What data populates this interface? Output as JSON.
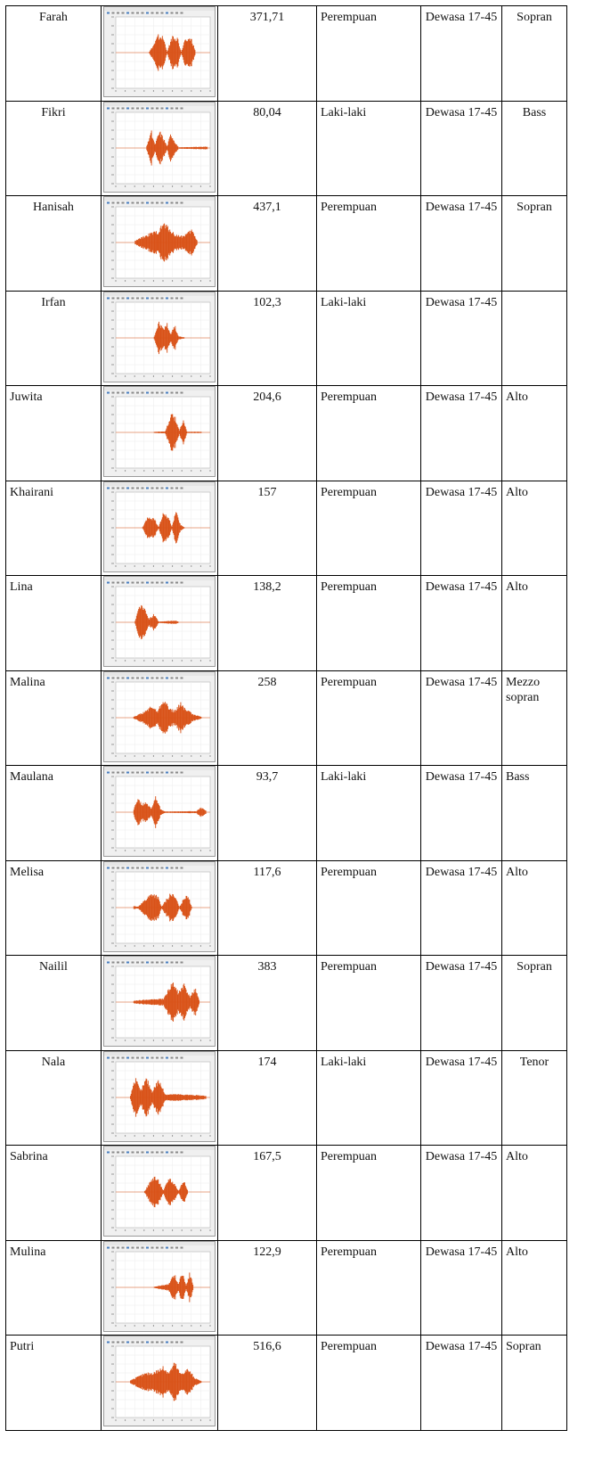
{
  "rows": [
    {
      "name": "Farah",
      "freq": "371,71",
      "gender": "Perempuan",
      "age": "Dewasa 17-45",
      "type": "Sopran",
      "align": "center",
      "wave": [
        [
          0.35,
          0.02
        ],
        [
          0.4,
          0.25
        ],
        [
          0.45,
          0.55
        ],
        [
          0.5,
          0.45
        ],
        [
          0.54,
          0.03
        ],
        [
          0.6,
          0.55
        ],
        [
          0.65,
          0.45
        ],
        [
          0.69,
          0.02
        ],
        [
          0.74,
          0.5
        ],
        [
          0.8,
          0.4
        ],
        [
          0.84,
          0.02
        ]
      ]
    },
    {
      "name": "Fikri",
      "freq": "80,04",
      "gender": "Laki-laki",
      "age": "Dewasa 17-45",
      "type": "Bass",
      "align": "center",
      "wave": [
        [
          0.32,
          0.03
        ],
        [
          0.37,
          0.55
        ],
        [
          0.41,
          0.1
        ],
        [
          0.46,
          0.5
        ],
        [
          0.5,
          0.3
        ],
        [
          0.54,
          0.05
        ],
        [
          0.58,
          0.45
        ],
        [
          0.62,
          0.2
        ],
        [
          0.66,
          0.02
        ],
        [
          0.93,
          0.04
        ],
        [
          0.97,
          0.04
        ]
      ]
    },
    {
      "name": "Hanisah",
      "freq": "437,1",
      "gender": "Perempuan",
      "age": "Dewasa 17-45",
      "type": "Sopran",
      "align": "center",
      "wave": [
        [
          0.2,
          0.05
        ],
        [
          0.3,
          0.2
        ],
        [
          0.38,
          0.3
        ],
        [
          0.45,
          0.35
        ],
        [
          0.5,
          0.6
        ],
        [
          0.56,
          0.45
        ],
        [
          0.62,
          0.25
        ],
        [
          0.7,
          0.2
        ],
        [
          0.76,
          0.3
        ],
        [
          0.8,
          0.4
        ],
        [
          0.86,
          0.05
        ]
      ]
    },
    {
      "name": "Irfan",
      "freq": "102,3",
      "gender": "Laki-laki",
      "age": "Dewasa 17-45",
      "type": "",
      "align": "center",
      "wave": [
        [
          0.4,
          0.02
        ],
        [
          0.45,
          0.5
        ],
        [
          0.5,
          0.3
        ],
        [
          0.54,
          0.45
        ],
        [
          0.58,
          0.1
        ],
        [
          0.62,
          0.4
        ],
        [
          0.66,
          0.05
        ],
        [
          0.72,
          0.02
        ]
      ]
    },
    {
      "name": "Juwita",
      "freq": "204,6",
      "gender": "Perempuan",
      "age": "Dewasa 17-45",
      "type": "Alto",
      "align": "left",
      "wave": [
        [
          0.4,
          0.02
        ],
        [
          0.52,
          0.03
        ],
        [
          0.58,
          0.55
        ],
        [
          0.63,
          0.45
        ],
        [
          0.67,
          0.05
        ],
        [
          0.71,
          0.4
        ],
        [
          0.75,
          0.02
        ],
        [
          0.9,
          0.02
        ]
      ]
    },
    {
      "name": "Khairani",
      "freq": "157",
      "gender": "Perempuan",
      "age": "Dewasa 17-45",
      "type": "Alto",
      "align": "left",
      "wave": [
        [
          0.28,
          0.02
        ],
        [
          0.34,
          0.35
        ],
        [
          0.4,
          0.3
        ],
        [
          0.45,
          0.02
        ],
        [
          0.5,
          0.45
        ],
        [
          0.55,
          0.35
        ],
        [
          0.59,
          0.03
        ],
        [
          0.63,
          0.5
        ],
        [
          0.68,
          0.1
        ],
        [
          0.72,
          0.02
        ]
      ]
    },
    {
      "name": "Lina",
      "freq": "138,2",
      "gender": "Perempuan",
      "age": "Dewasa 17-45",
      "type": "Alto",
      "align": "left",
      "wave": [
        [
          0.2,
          0.03
        ],
        [
          0.25,
          0.55
        ],
        [
          0.3,
          0.4
        ],
        [
          0.35,
          0.1
        ],
        [
          0.4,
          0.25
        ],
        [
          0.45,
          0.02
        ],
        [
          0.63,
          0.05
        ],
        [
          0.66,
          0.02
        ]
      ]
    },
    {
      "name": "Malina",
      "freq": "258",
      "gender": "Perempuan",
      "age": "Dewasa 17-45",
      "type": "Mezzo sopran",
      "align": "left",
      "wave": [
        [
          0.18,
          0.03
        ],
        [
          0.28,
          0.15
        ],
        [
          0.38,
          0.35
        ],
        [
          0.44,
          0.2
        ],
        [
          0.5,
          0.6
        ],
        [
          0.56,
          0.3
        ],
        [
          0.62,
          0.2
        ],
        [
          0.68,
          0.45
        ],
        [
          0.74,
          0.25
        ],
        [
          0.82,
          0.1
        ],
        [
          0.9,
          0.03
        ]
      ]
    },
    {
      "name": "Maulana",
      "freq": "93,7",
      "gender": "Laki-laki",
      "age": "Dewasa 17-45",
      "type": "Bass",
      "align": "left",
      "wave": [
        [
          0.18,
          0.03
        ],
        [
          0.22,
          0.45
        ],
        [
          0.27,
          0.25
        ],
        [
          0.32,
          0.3
        ],
        [
          0.37,
          0.1
        ],
        [
          0.42,
          0.5
        ],
        [
          0.47,
          0.1
        ],
        [
          0.52,
          0.02
        ],
        [
          0.85,
          0.03
        ],
        [
          0.9,
          0.15
        ],
        [
          0.95,
          0.05
        ]
      ]
    },
    {
      "name": "Melisa",
      "freq": "117,6",
      "gender": "Perempuan",
      "age": "Dewasa 17-45",
      "type": "Alto",
      "align": "left",
      "wave": [
        [
          0.18,
          0.05
        ],
        [
          0.23,
          0.03
        ],
        [
          0.38,
          0.45
        ],
        [
          0.44,
          0.35
        ],
        [
          0.48,
          0.02
        ],
        [
          0.58,
          0.45
        ],
        [
          0.63,
          0.3
        ],
        [
          0.67,
          0.02
        ],
        [
          0.75,
          0.45
        ],
        [
          0.8,
          0.03
        ]
      ]
    },
    {
      "name": "Nailil",
      "freq": "383",
      "gender": "Perempuan",
      "age": "Dewasa 17-45",
      "type": "Sopran",
      "align": "center",
      "wave": [
        [
          0.18,
          0.04
        ],
        [
          0.35,
          0.08
        ],
        [
          0.5,
          0.1
        ],
        [
          0.6,
          0.6
        ],
        [
          0.66,
          0.3
        ],
        [
          0.72,
          0.55
        ],
        [
          0.78,
          0.15
        ],
        [
          0.84,
          0.45
        ],
        [
          0.88,
          0.05
        ]
      ]
    },
    {
      "name": "Nala",
      "freq": "174",
      "gender": "Laki-laki",
      "age": "Dewasa 17-45",
      "type": "Tenor",
      "align": "center",
      "wave": [
        [
          0.15,
          0.05
        ],
        [
          0.2,
          0.6
        ],
        [
          0.26,
          0.2
        ],
        [
          0.32,
          0.6
        ],
        [
          0.38,
          0.2
        ],
        [
          0.45,
          0.55
        ],
        [
          0.52,
          0.1
        ],
        [
          0.65,
          0.1
        ],
        [
          0.8,
          0.08
        ],
        [
          0.95,
          0.05
        ]
      ]
    },
    {
      "name": "Sabrina",
      "freq": "167,5",
      "gender": "Perempuan",
      "age": "Dewasa 17-45",
      "type": "Alto",
      "align": "left",
      "wave": [
        [
          0.3,
          0.02
        ],
        [
          0.4,
          0.5
        ],
        [
          0.46,
          0.3
        ],
        [
          0.5,
          0.03
        ],
        [
          0.56,
          0.45
        ],
        [
          0.62,
          0.25
        ],
        [
          0.66,
          0.03
        ],
        [
          0.72,
          0.4
        ],
        [
          0.76,
          0.02
        ]
      ]
    },
    {
      "name": "Mulina",
      "freq": "122,9",
      "gender": "Perempuan",
      "age": "Dewasa 17-45",
      "type": "Alto",
      "align": "left",
      "wave": [
        [
          0.4,
          0.02
        ],
        [
          0.55,
          0.1
        ],
        [
          0.62,
          0.4
        ],
        [
          0.66,
          0.1
        ],
        [
          0.7,
          0.5
        ],
        [
          0.74,
          0.05
        ],
        [
          0.78,
          0.45
        ],
        [
          0.82,
          0.02
        ]
      ]
    },
    {
      "name": "Putri",
      "freq": "516,6",
      "gender": "Perempuan",
      "age": "Dewasa 17-45",
      "type": "Sopran",
      "align": "left",
      "wave": [
        [
          0.15,
          0.05
        ],
        [
          0.3,
          0.25
        ],
        [
          0.4,
          0.3
        ],
        [
          0.5,
          0.45
        ],
        [
          0.56,
          0.3
        ],
        [
          0.62,
          0.6
        ],
        [
          0.68,
          0.25
        ],
        [
          0.76,
          0.4
        ],
        [
          0.84,
          0.1
        ],
        [
          0.9,
          0.03
        ]
      ]
    }
  ]
}
